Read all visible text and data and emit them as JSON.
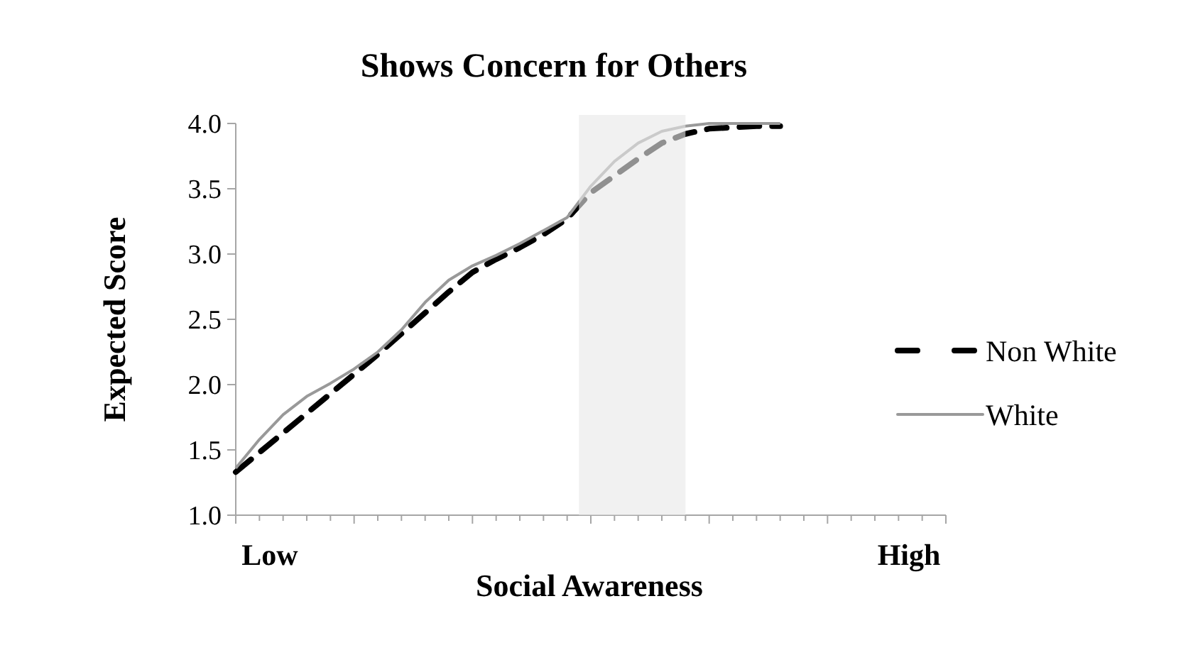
{
  "chart_data": {
    "type": "line",
    "title": "Shows Concern for Others",
    "xlabel": "Social Awareness",
    "ylabel": "Expected Score",
    "annotations": [
      "Low",
      "High"
    ],
    "categories": [
      null,
      null,
      null,
      null,
      null,
      null,
      null,
      null,
      null,
      null,
      null,
      null,
      null,
      null,
      null,
      null,
      null,
      null,
      null,
      null,
      null,
      null,
      null,
      null,
      null,
      null,
      null,
      null,
      null,
      null,
      null
    ],
    "ylim": [
      1,
      4
    ],
    "yticks": [
      {
        "value": 1,
        "label": "1.0"
      },
      {
        "value": 1.5,
        "label": "1.5"
      },
      {
        "value": 2,
        "label": "2.0"
      },
      {
        "value": 2.5,
        "label": "2.5"
      },
      {
        "value": 3,
        "label": "3.0"
      },
      {
        "value": 3.5,
        "label": "3.5"
      },
      {
        "value": 4,
        "label": "4.0"
      }
    ],
    "legend": "right",
    "grid": false,
    "marker": "none",
    "series": [
      {
        "name": "Non White",
        "color": "#000000",
        "line_style": "dashed",
        "values": [
          1.33,
          1.48,
          1.63,
          1.78,
          1.93,
          2.08,
          2.23,
          2.39,
          2.55,
          2.71,
          2.86,
          2.96,
          3.05,
          3.15,
          3.27,
          3.47,
          3.6,
          3.73,
          3.85,
          3.92,
          3.96,
          3.97,
          3.98,
          3.98,
          null,
          null,
          null,
          null,
          null,
          null,
          null
        ]
      },
      {
        "name": "White",
        "color": "#999999",
        "line_style": "solid",
        "values": [
          1.36,
          1.58,
          1.77,
          1.91,
          2.01,
          2.12,
          2.25,
          2.42,
          2.63,
          2.8,
          2.91,
          2.99,
          3.08,
          3.18,
          3.28,
          3.52,
          3.71,
          3.85,
          3.94,
          3.98,
          4.0,
          4.0,
          4.0,
          4.0,
          null,
          null,
          null,
          null,
          null,
          null,
          null
        ]
      }
    ]
  }
}
